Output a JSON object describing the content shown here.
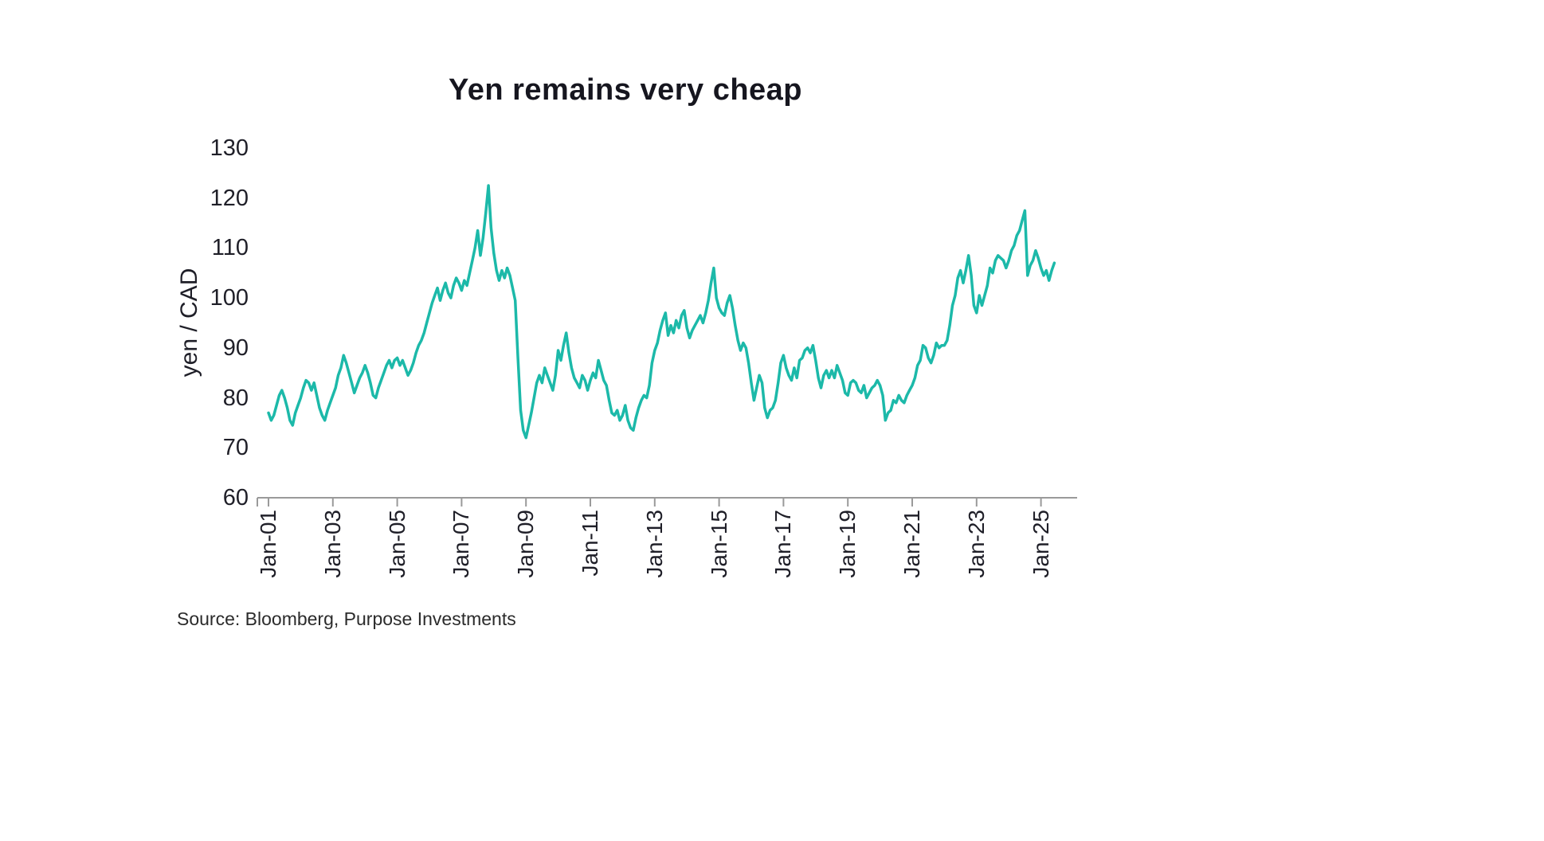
{
  "title": "Yen remains very cheap",
  "source": "Source: Bloomberg, Purpose Investments",
  "chart_data": {
    "type": "line",
    "title": "Yen remains very cheap",
    "xlabel": "",
    "ylabel": "yen / CAD",
    "ylim": [
      60,
      130
    ],
    "y_ticks": [
      130,
      120,
      110,
      100,
      90,
      80,
      70,
      60
    ],
    "x_tick_labels": [
      "Jan-01",
      "Jan-03",
      "Jan-05",
      "Jan-07",
      "Jan-09",
      "Jan-11",
      "Jan-13",
      "Jan-15",
      "Jan-17",
      "Jan-19",
      "Jan-21",
      "Jan-23",
      "Jan-25"
    ],
    "x_tick_years": [
      2001,
      2003,
      2005,
      2007,
      2009,
      2011,
      2013,
      2015,
      2017,
      2019,
      2021,
      2023,
      2025
    ],
    "grid": false,
    "legend": "none",
    "line_color": "#1CB9A9",
    "axis_color": "#9a9a9a",
    "series": [
      {
        "name": "yen / CAD",
        "start_year": 2001,
        "points_per_year": 12,
        "values": [
          77,
          75.5,
          76.5,
          78.5,
          80.5,
          81.5,
          80,
          78,
          75.5,
          74.5,
          77,
          78.5,
          80,
          82,
          83.5,
          83,
          81.5,
          83,
          80.5,
          78,
          76.5,
          75.5,
          77.5,
          79,
          80.5,
          82,
          84.5,
          86,
          88.5,
          87,
          85,
          83,
          81,
          82.5,
          84,
          85,
          86.5,
          85,
          83,
          80.5,
          80,
          82,
          83.5,
          85,
          86.5,
          87.5,
          86,
          87.5,
          88,
          86.5,
          87.5,
          86,
          84.5,
          85.5,
          87,
          89,
          90.5,
          91.5,
          93,
          95,
          97,
          99,
          100.5,
          102,
          99.5,
          101.5,
          103,
          101,
          100,
          102.5,
          104,
          103,
          101.5,
          103.5,
          102.5,
          105,
          107.5,
          110,
          113.5,
          108.5,
          112,
          117,
          122.5,
          114,
          109,
          105.5,
          103.5,
          105.5,
          104,
          106,
          104.5,
          102,
          99.5,
          88,
          77.5,
          73.5,
          72,
          74.5,
          77,
          80,
          83,
          84.5,
          83,
          86,
          84.5,
          83,
          81.5,
          84.5,
          89.5,
          87.5,
          90.5,
          93,
          89,
          86,
          84,
          83,
          82,
          84.5,
          83.5,
          81.5,
          83.5,
          85,
          84,
          87.5,
          85.5,
          83.5,
          82.5,
          79.5,
          77,
          76.5,
          77.5,
          75.5,
          76.5,
          78.5,
          75.5,
          74,
          73.5,
          76,
          78,
          79.5,
          80.5,
          80,
          82.5,
          87,
          89.5,
          91,
          93.5,
          95.5,
          97,
          92.5,
          94.5,
          93,
          95.5,
          94,
          96.5,
          97.5,
          94,
          92,
          93.5,
          94.5,
          95.5,
          96.5,
          95,
          97,
          99.5,
          103,
          106,
          100,
          98,
          97,
          96.5,
          99,
          100.5,
          98,
          94.5,
          91.5,
          89.5,
          91,
          90,
          87,
          83,
          79.5,
          82,
          84.5,
          83,
          78,
          76,
          77.5,
          78,
          79.5,
          83,
          87,
          88.5,
          86,
          84.5,
          83.5,
          86,
          84,
          87.5,
          88,
          89.5,
          90,
          89,
          90.5,
          87.5,
          84,
          82,
          84.5,
          85.5,
          84,
          85.5,
          84,
          86.5,
          85,
          83.5,
          81,
          80.5,
          83,
          83.5,
          83,
          81.5,
          81,
          82.5,
          80,
          81,
          82,
          82.5,
          83.5,
          82.5,
          80.5,
          75.5,
          77,
          77.5,
          79.5,
          79,
          80.5,
          79.5,
          79,
          80.5,
          81.5,
          82.5,
          84,
          86.5,
          87.5,
          90.5,
          90,
          88,
          87,
          88.5,
          91,
          90,
          90.5,
          90.5,
          91.5,
          94.5,
          98.5,
          100.5,
          104,
          105.5,
          103,
          105.5,
          108.5,
          104.5,
          98.5,
          97,
          100.5,
          98.5,
          100.5,
          102.5,
          106,
          105,
          107.5,
          108.5,
          108,
          107.5,
          106,
          107.5,
          109.5,
          110.5,
          112.5,
          113.5,
          115.5,
          117.5,
          104.5,
          106.5,
          107.5,
          109.5,
          108,
          106,
          104.5,
          105.5,
          103.5,
          105.5,
          107
        ]
      }
    ]
  }
}
